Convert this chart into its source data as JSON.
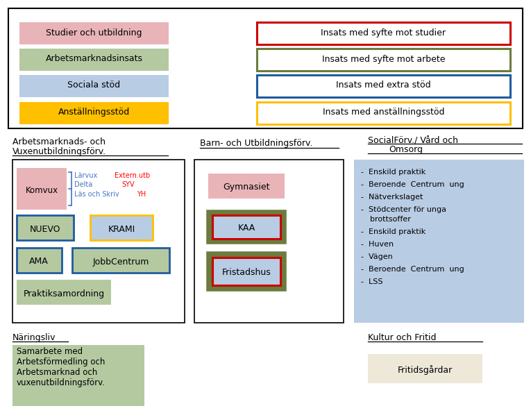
{
  "fig_w": 7.65,
  "fig_h": 5.95,
  "dpi": 100,
  "bg_color": "#ffffff",
  "legend_left_colors": [
    "#e8b4b8",
    "#b5c9a1",
    "#b8cce4",
    "#ffc000"
  ],
  "legend_left_labels": [
    "Studier och utbildning",
    "Arbetsmarknadsinsats",
    "Sociala stöd",
    "Anställningsstöd"
  ],
  "legend_right_labels": [
    "Insats med syfte mot studier",
    "Insats med syfte mot arbete",
    "Insats med extra stöd",
    "Insats med anställningsstöd"
  ],
  "legend_right_borders": [
    "#cc0000",
    "#6b7c3e",
    "#1f5c9e",
    "#ffc000"
  ],
  "social_items": [
    "Enskild praktik",
    "Beroende  Centrum  ung",
    "Nätverkslaget",
    "Stödcenter för unga\nbrottsoffer",
    "Enskild praktik",
    "Huven",
    "Vägen",
    "Beroende  Centrum  ung",
    "LSS"
  ],
  "komvux_sub_blue": [
    "Lärvux",
    "Delta",
    "Läs och Skriv"
  ],
  "komvux_sub_red": [
    "Extern.utb",
    "SYV",
    "YH"
  ]
}
